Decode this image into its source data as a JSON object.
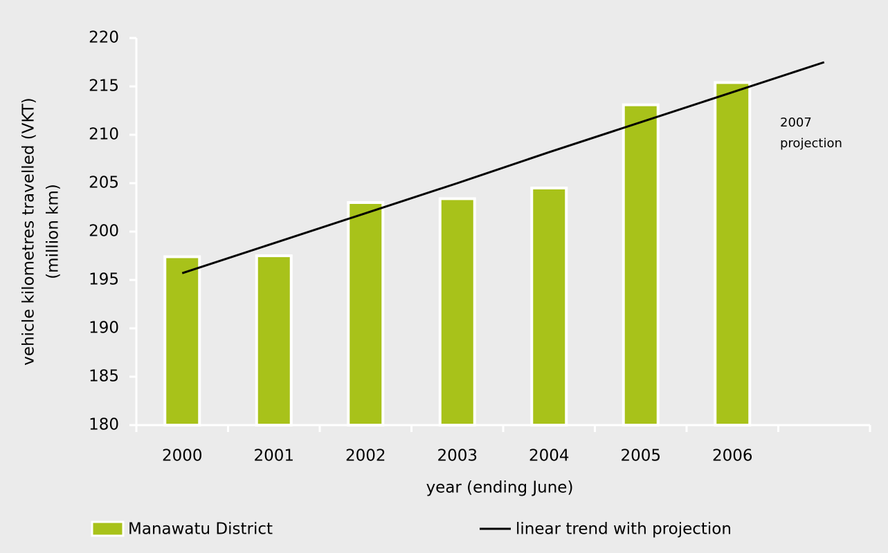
{
  "chart_data": {
    "type": "bar",
    "categories": [
      "2000",
      "2001",
      "2002",
      "2003",
      "2004",
      "2005",
      "2006",
      null
    ],
    "series": [
      {
        "name": "Manawatu District",
        "type": "bar",
        "color": "#a8c21a",
        "values": [
          197.4,
          197.5,
          203.0,
          203.4,
          204.5,
          213.1,
          215.4,
          null
        ]
      },
      {
        "name": "linear trend with projection",
        "type": "line",
        "color": "#000000",
        "values": [
          195.7,
          198.8,
          201.9,
          205.0,
          208.2,
          211.3,
          214.4,
          217.5
        ]
      }
    ],
    "ylim": [
      180,
      220
    ],
    "yticks": [
      180,
      185,
      190,
      195,
      200,
      205,
      210,
      215,
      220
    ],
    "xlabel": "year (ending June)",
    "ylabel": [
      "vehicle kilometres travelled (VKT)",
      "(million km)"
    ],
    "annotation": [
      "2007",
      "projection"
    ],
    "grid": false,
    "legend": "bottom"
  }
}
